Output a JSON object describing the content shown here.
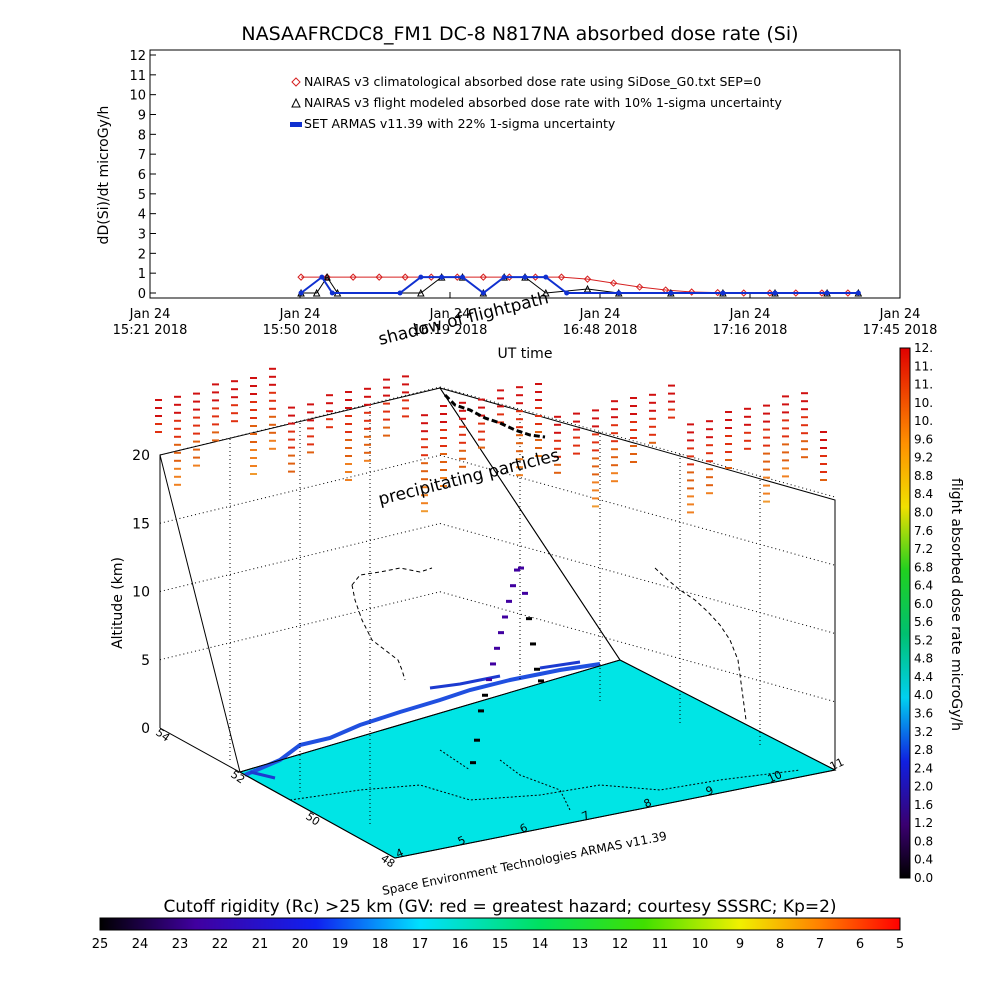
{
  "title": "NASAAFRCDC8_FM1 DC-8   N817NA absorbed dose rate (Si)",
  "colors": {
    "nairas_clim": "#d62020",
    "nairas_flight": "#000000",
    "armas": "#1030d0",
    "ocean": "#00e5e5",
    "land": "#2050e0"
  },
  "chart_data": [
    {
      "type": "line",
      "title": "NASAAFRCDC8_FM1 DC-8   N817NA absorbed dose rate (Si)",
      "xlabel": "UT time",
      "ylabel": "dD(Si)/dt microGy/h",
      "ylim": [
        0,
        12
      ],
      "yticks": [
        "0",
        "1",
        "2",
        "3",
        "4",
        "5",
        "6",
        "7",
        "8",
        "9",
        "10",
        "11",
        "12"
      ],
      "xticks": [
        {
          "top": "Jan 24",
          "bottom": "15:21 2018"
        },
        {
          "top": "Jan 24",
          "bottom": "15:50 2018"
        },
        {
          "top": "Jan 24",
          "bottom": "16:19 2018"
        },
        {
          "top": "Jan 24",
          "bottom": "16:48 2018"
        },
        {
          "top": "Jan 24",
          "bottom": "17:16 2018"
        },
        {
          "top": "Jan 24",
          "bottom": "17:45 2018"
        }
      ],
      "xlim_minutes": [
        0,
        144
      ],
      "legend_placement": "top-center",
      "series": [
        {
          "name": "NAIRAS v3 climatological absorbed dose rate using SiDose_G0.txt SEP=0",
          "marker": "diamond",
          "x_minutes": [
            29,
            34,
            39,
            44,
            49,
            54,
            59,
            64,
            69,
            74,
            79,
            84,
            89,
            94,
            99,
            104,
            109,
            114,
            119,
            124,
            129,
            134
          ],
          "values": [
            0.8,
            0.8,
            0.8,
            0.8,
            0.8,
            0.8,
            0.8,
            0.8,
            0.8,
            0.8,
            0.8,
            0.7,
            0.5,
            0.3,
            0.15,
            0.05,
            0.02,
            0.0,
            0.0,
            0.0,
            0.0,
            0.0
          ]
        },
        {
          "name": "NAIRAS v3 flight modeled absorbed dose rate with 10% 1-sigma uncertainty",
          "marker": "triangle",
          "x_minutes": [
            29,
            32,
            34,
            36,
            52,
            56,
            60,
            64,
            68,
            72,
            76,
            84,
            90,
            100,
            110,
            120,
            130,
            136
          ],
          "values": [
            0.0,
            0.0,
            0.8,
            0.0,
            0.0,
            0.8,
            0.8,
            0.0,
            0.8,
            0.8,
            0.0,
            0.2,
            0.0,
            0.0,
            0.0,
            0.0,
            0.0,
            0.0
          ]
        },
        {
          "name": "SET ARMAS v11.39 with 22% 1-sigma uncertainty",
          "marker": "filled-circle",
          "x_minutes": [
            29,
            33,
            35,
            48,
            52,
            56,
            60,
            64,
            68,
            72,
            76,
            80,
            90,
            100,
            110,
            120,
            130,
            136
          ],
          "values": [
            0.0,
            0.8,
            0.0,
            0.0,
            0.8,
            0.8,
            0.8,
            0.0,
            0.8,
            0.8,
            0.8,
            0.0,
            0.0,
            0.0,
            0.0,
            0.0,
            0.0,
            0.0
          ]
        }
      ]
    },
    {
      "type": "scatter",
      "subtype": "3d-flight-track-with-map",
      "zlabel": "Altitude (km)",
      "zticks": [
        "0",
        "5",
        "10",
        "15",
        "20"
      ],
      "zlim": [
        0,
        22
      ],
      "x_ticks_lon": [
        "4",
        "5",
        "6",
        "7",
        "8",
        "9",
        "10",
        "11"
      ],
      "y_ticks_lat": [
        "48",
        "50",
        "52",
        "54"
      ],
      "annotations": [
        "shadow of flightpath",
        "precipitating particles"
      ],
      "footer": "Space Environment Technologies ARMAS v11.39",
      "flight_track": {
        "altitude_km": [
          0.5,
          2,
          4,
          5,
          6,
          7,
          8,
          9,
          10,
          11,
          12,
          13,
          13,
          11,
          9,
          7,
          5,
          4
        ],
        "dose_microGy_h": [
          0.2,
          0.3,
          0.5,
          0.6,
          0.7,
          0.8,
          0.8,
          0.9,
          0.9,
          0.8,
          0.8,
          0.9,
          0.8,
          0.7,
          0.5,
          0.3,
          0.2,
          0.1
        ]
      }
    }
  ],
  "dose_colorbar": {
    "label": "flight absorbed dose rate microGy/h",
    "ticks": [
      "0.0",
      "0.4",
      "0.8",
      "1.2",
      "1.6",
      "2.0",
      "2.4",
      "2.8",
      "3.2",
      "3.6",
      "4.0",
      "4.4",
      "4.8",
      "5.2",
      "5.6",
      "6.0",
      "6.4",
      "6.8",
      "7.2",
      "7.6",
      "8.0",
      "8.4",
      "8.8",
      "9.2",
      "9.6",
      "10.",
      "10.",
      "11.",
      "11.",
      "12."
    ]
  },
  "rigidity_colorbar": {
    "label": "Cutoff rigidity (Rc) >25 km (GV: red = greatest hazard; courtesy SSSRC; Kp=2)",
    "ticks": [
      "25",
      "24",
      "23",
      "22",
      "21",
      "20",
      "19",
      "18",
      "17",
      "16",
      "15",
      "14",
      "13",
      "12",
      "11",
      "10",
      "9",
      "8",
      "7",
      "6",
      "5"
    ]
  }
}
